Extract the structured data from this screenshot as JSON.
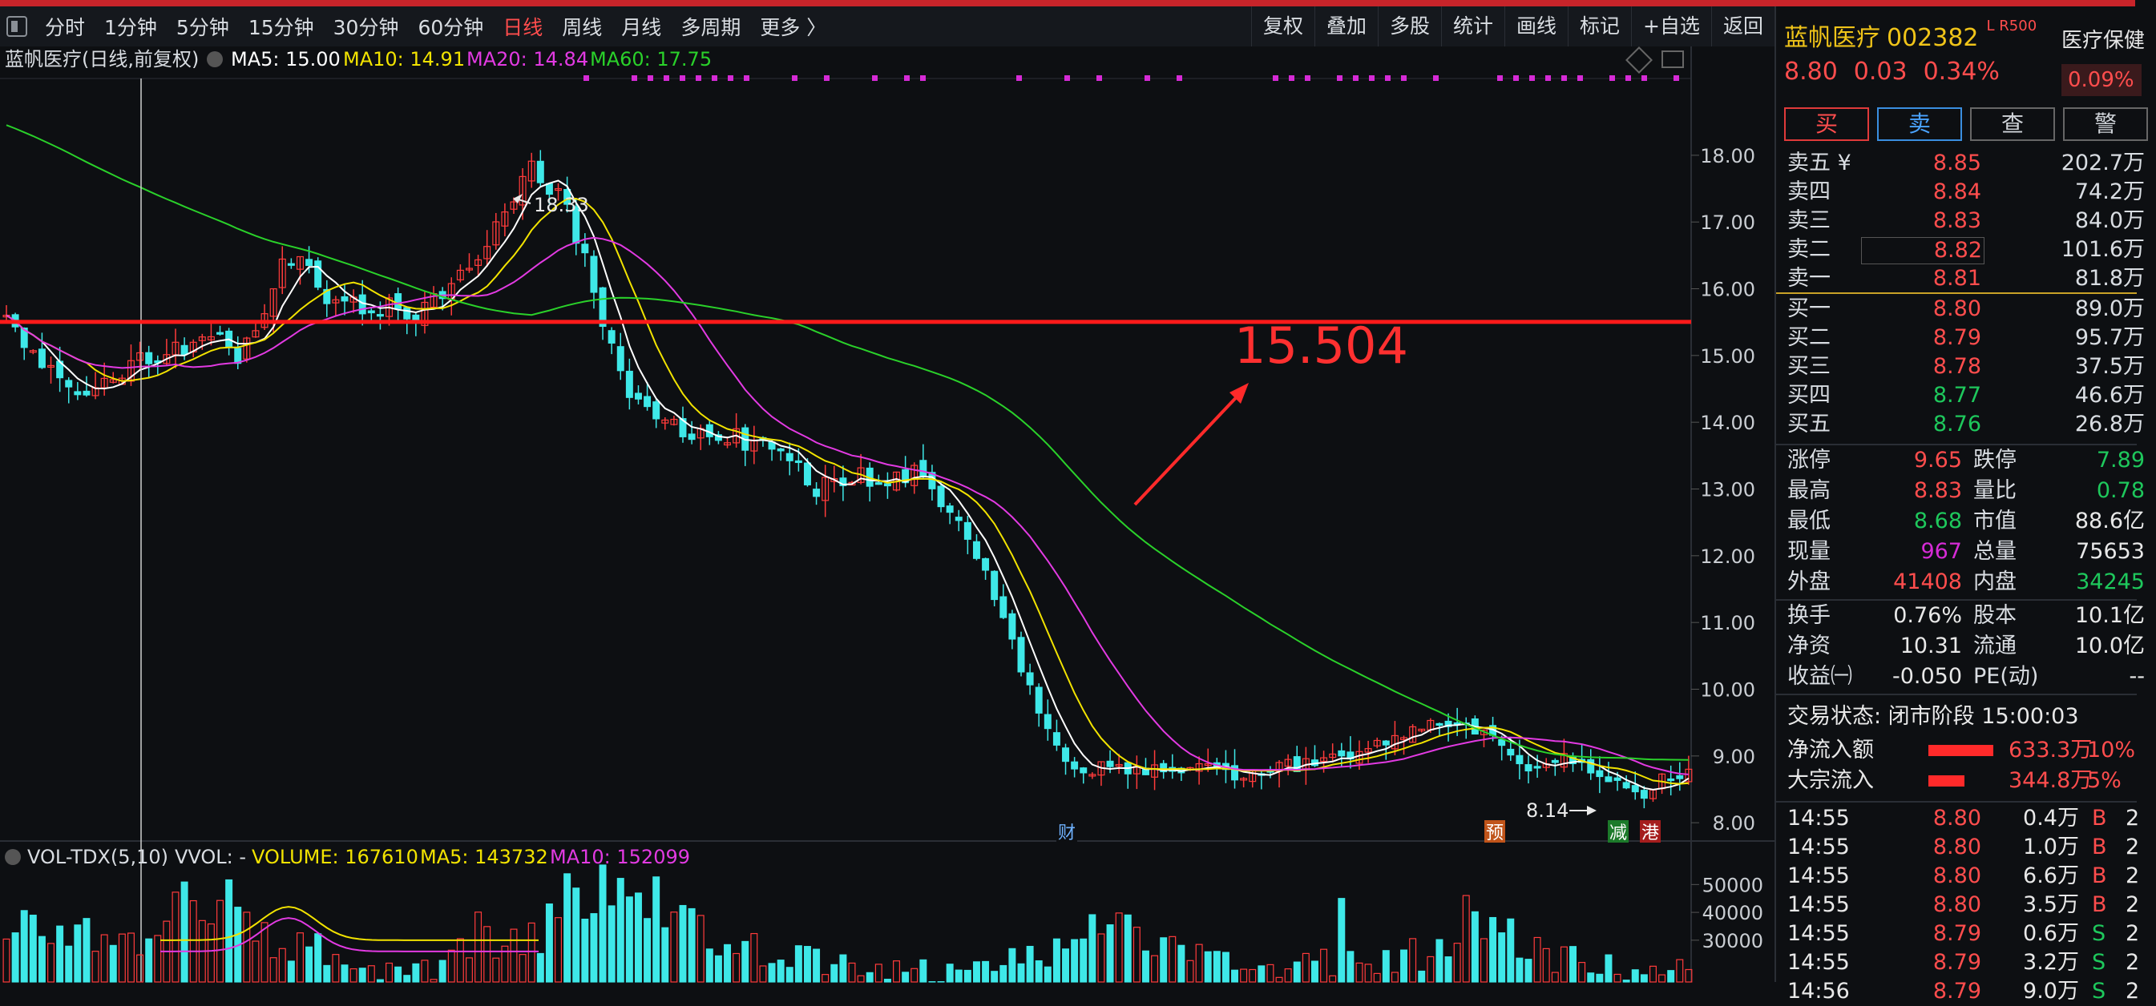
{
  "toolbar": {
    "periods": [
      "分时",
      "1分钟",
      "5分钟",
      "15分钟",
      "30分钟",
      "60分钟",
      "日线",
      "周线",
      "月线",
      "多周期",
      "更多 〉"
    ],
    "active_period": "日线",
    "right_buttons": [
      "复权",
      "叠加",
      "多股",
      "统计",
      "画线",
      "标记",
      "+自选",
      "返回"
    ]
  },
  "chart_header": {
    "title": "蓝帆医疗(日线,前复权)",
    "ma5": "MA5: 15.00",
    "ma10": "MA10: 14.91",
    "ma20": "MA20: 14.84",
    "ma60": "MA60: 17.75"
  },
  "volume_header": {
    "title": "VOL-TDX(5,10)",
    "vvol": "VVOL: -",
    "volume": "VOLUME: 167610",
    "ma5": "MA5: 143732",
    "ma10": "MA10: 152099"
  },
  "annotation": {
    "level_label": "15.504",
    "level_value": 15.504
  },
  "markers": {
    "cai": "财",
    "yu": "预",
    "jian": "减",
    "gang": "港"
  },
  "chart_data": {
    "type": "candlestick",
    "y_ticks": [
      "18.00",
      "17.00",
      "16.00",
      "15.00",
      "14.00",
      "13.00",
      "12.00",
      "11.00",
      "10.00",
      "9.00",
      "8.00"
    ],
    "ylim": [
      7.75,
      19.15
    ],
    "high_label": "18.33",
    "low_label": "8.14",
    "volume_ticks": [
      "50000",
      "40000",
      "30000"
    ],
    "volume_ylim": [
      15000,
      57000
    ],
    "close_path": [
      15.5,
      15.2,
      14.9,
      14.7,
      14.5,
      14.6,
      14.8,
      15.0,
      15.0,
      15.1,
      15.1,
      15.2,
      15.0,
      15.4,
      16.3,
      16.6,
      16.0,
      15.8,
      15.9,
      15.7,
      15.8,
      15.6,
      15.8,
      16.0,
      16.4,
      16.8,
      17.2,
      17.9,
      17.6,
      17.1,
      16.4,
      15.4,
      14.6,
      14.2,
      14.0,
      13.9,
      13.8,
      13.9,
      13.7,
      13.8,
      13.6,
      13.3,
      13.0,
      13.1,
      13.2,
      13.0,
      13.1,
      13.2,
      13.0,
      12.6,
      12.1,
      11.4,
      10.7,
      10.0,
      9.2,
      8.9,
      8.8,
      8.85,
      8.8,
      8.75,
      8.8,
      8.85,
      8.8,
      8.7,
      8.75,
      8.8,
      8.85,
      8.85,
      8.9,
      9.0,
      9.1,
      9.2,
      9.3,
      9.4,
      9.45,
      9.5,
      9.4,
      9.3,
      8.9,
      8.7,
      8.9,
      8.95,
      8.8,
      8.6,
      8.4,
      8.5,
      8.7,
      8.8
    ],
    "candle_count": 190,
    "volume_profile": [
      30000,
      38000,
      32000,
      26000,
      42000,
      48000,
      31000,
      27000,
      22000,
      20000,
      19000,
      34000,
      26000,
      44000,
      55000,
      47000,
      35000,
      28000,
      24000,
      22000,
      21000,
      19000,
      20000,
      21000,
      23000,
      38000,
      32000,
      26000,
      23000,
      20000,
      21000,
      22000,
      24000,
      25000,
      40000,
      30000,
      24000,
      21000,
      20000,
      19000
    ]
  },
  "right_panel": {
    "name": "蓝帆医疗",
    "code": "002382",
    "tags": "L R500",
    "sector": "医疗保健",
    "sector_pct": "0.09%",
    "price": "8.80",
    "change": "0.03",
    "change_pct": "0.34%",
    "buttons": [
      "买",
      "卖",
      "查",
      "警"
    ],
    "asks": [
      {
        "label": "卖五 ¥",
        "price": "8.85",
        "vol": "202.7万"
      },
      {
        "label": "卖四",
        "price": "8.84",
        "vol": "74.2万"
      },
      {
        "label": "卖三",
        "price": "8.83",
        "vol": "84.0万"
      },
      {
        "label": "卖二",
        "price": "8.82",
        "vol": "101.6万"
      },
      {
        "label": "卖一",
        "price": "8.81",
        "vol": "81.8万"
      }
    ],
    "bids": [
      {
        "label": "买一",
        "price": "8.80",
        "vol": "89.0万"
      },
      {
        "label": "买二",
        "price": "8.79",
        "vol": "95.7万"
      },
      {
        "label": "买三",
        "price": "8.78",
        "vol": "37.5万"
      },
      {
        "label": "买四",
        "price": "8.77",
        "vol": "46.6万"
      },
      {
        "label": "买五",
        "price": "8.76",
        "vol": "26.8万"
      }
    ],
    "stats1": [
      {
        "l1": "涨停",
        "v1": "9.65",
        "c1": "red",
        "l2": "跌停",
        "v2": "7.89",
        "c2": "green"
      },
      {
        "l1": "最高",
        "v1": "8.83",
        "c1": "red",
        "l2": "量比",
        "v2": "0.78",
        "c2": "green"
      },
      {
        "l1": "最低",
        "v1": "8.68",
        "c1": "green",
        "l2": "市值",
        "v2": "88.6亿",
        "c2": "white"
      },
      {
        "l1": "现量",
        "v1": "967",
        "c1": "purple",
        "l2": "总量",
        "v2": "75653",
        "c2": "white"
      },
      {
        "l1": "外盘",
        "v1": "41408",
        "c1": "red",
        "l2": "内盘",
        "v2": "34245",
        "c2": "green"
      }
    ],
    "stats2": [
      {
        "l1": "换手",
        "v1": "0.76%",
        "c1": "white",
        "l2": "股本",
        "v2": "10.1亿",
        "c2": "white"
      },
      {
        "l1": "净资",
        "v1": "10.31",
        "c1": "white",
        "l2": "流通",
        "v2": "10.0亿",
        "c2": "white"
      },
      {
        "l1": "收益㈠",
        "v1": "-0.050",
        "c1": "white",
        "l2": "PE(动)",
        "v2": "--",
        "c2": "white"
      }
    ],
    "status": "交易状态: 闭市阶段 15:00:03",
    "flows": [
      {
        "label": "净流入额",
        "value": "633.3万",
        "pct": "10%",
        "bar": 0.9
      },
      {
        "label": "大宗流入",
        "value": "344.8万",
        "pct": "5%",
        "bar": 0.5
      }
    ],
    "trades": [
      {
        "time": "14:55",
        "price": "8.80",
        "vol": "0.4万",
        "side": "B",
        "extra": "2"
      },
      {
        "time": "14:55",
        "price": "8.80",
        "vol": "1.0万",
        "side": "B",
        "extra": "2"
      },
      {
        "time": "14:55",
        "price": "8.80",
        "vol": "6.6万",
        "side": "B",
        "extra": "2"
      },
      {
        "time": "14:55",
        "price": "8.80",
        "vol": "3.5万",
        "side": "B",
        "extra": "2"
      },
      {
        "time": "14:55",
        "price": "8.79",
        "vol": "0.6万",
        "side": "S",
        "extra": "2"
      },
      {
        "time": "14:55",
        "price": "8.79",
        "vol": "3.2万",
        "side": "S",
        "extra": "2"
      },
      {
        "time": "14:56",
        "price": "8.79",
        "vol": "9.0万",
        "side": "S",
        "extra": "2"
      }
    ]
  }
}
